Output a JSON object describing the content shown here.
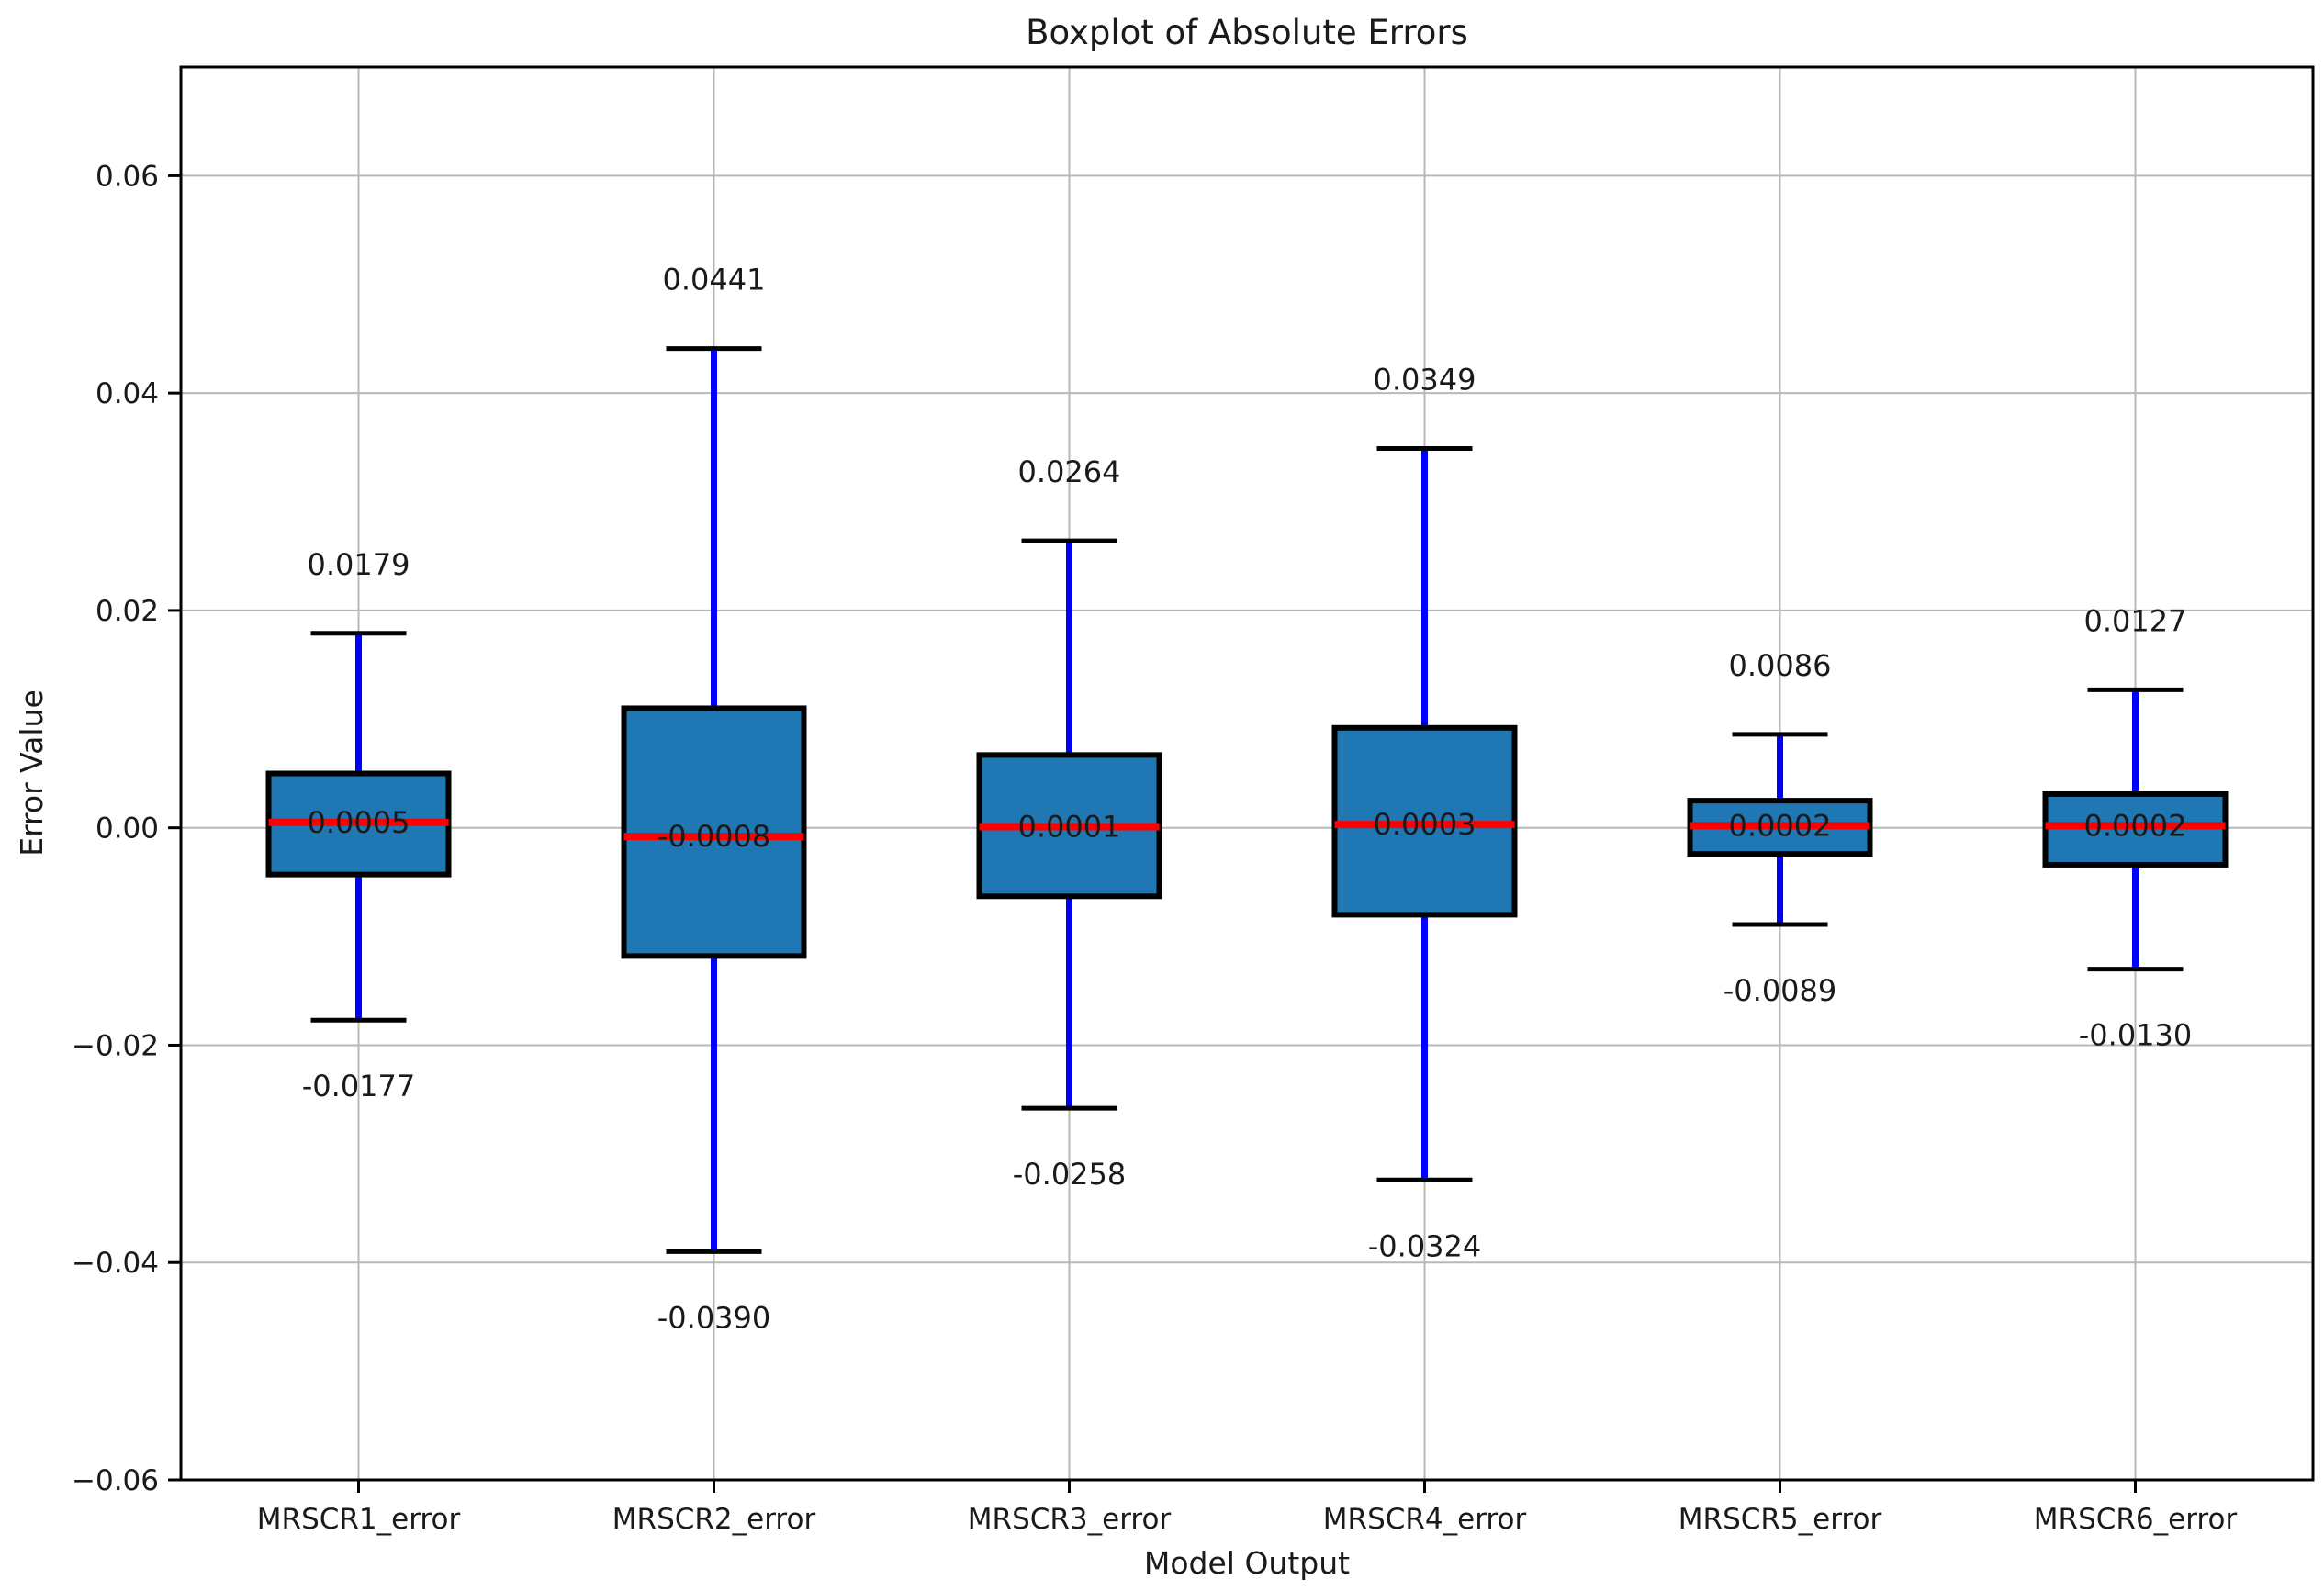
{
  "chart": {
    "title": "Boxplot of Absolute Errors",
    "xlabel": "Model Output",
    "ylabel": "Error Value"
  },
  "chart_data": {
    "type": "boxplot",
    "title": "Boxplot of Absolute Errors",
    "xlabel": "Model Output",
    "ylabel": "Error Value",
    "ylim": [
      -0.06,
      0.07
    ],
    "grid": true,
    "legend": "none",
    "yticks": [
      {
        "value": 0.06,
        "label": "0.06"
      },
      {
        "value": 0.04,
        "label": "0.04"
      },
      {
        "value": 0.02,
        "label": "0.02"
      },
      {
        "value": 0.0,
        "label": "0.00"
      },
      {
        "value": -0.02,
        "label": "−0.02"
      },
      {
        "value": -0.04,
        "label": "−0.04"
      },
      {
        "value": -0.06,
        "label": "−0.06"
      }
    ],
    "categories": [
      "MRSCR1_error",
      "MRSCR2_error",
      "MRSCR3_error",
      "MRSCR4_error",
      "MRSCR5_error",
      "MRSCR6_error"
    ],
    "boxes": [
      {
        "category": "MRSCR1_error",
        "whisker_high": 0.0179,
        "q3": 0.005,
        "median": 0.0005,
        "q1": -0.0043,
        "whisker_low": -0.0177,
        "labels": {
          "whisker_high": "0.0179",
          "median": "0.0005",
          "whisker_low": "-0.0177"
        }
      },
      {
        "category": "MRSCR2_error",
        "whisker_high": 0.0441,
        "q3": 0.011,
        "median": -0.0008,
        "q1": -0.0118,
        "whisker_low": -0.039,
        "labels": {
          "whisker_high": "0.0441",
          "median": "-0.0008",
          "whisker_low": "-0.0390"
        }
      },
      {
        "category": "MRSCR3_error",
        "whisker_high": 0.0264,
        "q3": 0.0067,
        "median": 0.0001,
        "q1": -0.0063,
        "whisker_low": -0.0258,
        "labels": {
          "whisker_high": "0.0264",
          "median": "0.0001",
          "whisker_low": "-0.0258"
        }
      },
      {
        "category": "MRSCR4_error",
        "whisker_high": 0.0349,
        "q3": 0.0092,
        "median": 0.0003,
        "q1": -0.008,
        "whisker_low": -0.0324,
        "labels": {
          "whisker_high": "0.0349",
          "median": "0.0003",
          "whisker_low": "-0.0324"
        }
      },
      {
        "category": "MRSCR5_error",
        "whisker_high": 0.0086,
        "q3": 0.0025,
        "median": 0.0002,
        "q1": -0.0024,
        "whisker_low": -0.0089,
        "labels": {
          "whisker_high": "0.0086",
          "median": "0.0002",
          "whisker_low": "-0.0089"
        }
      },
      {
        "category": "MRSCR6_error",
        "whisker_high": 0.0127,
        "q3": 0.0031,
        "median": 0.0002,
        "q1": -0.0034,
        "whisker_low": -0.013,
        "labels": {
          "whisker_high": "0.0127",
          "median": "0.0002",
          "whisker_low": "-0.0130"
        }
      }
    ],
    "colors": {
      "box_fill": "#1f77b4",
      "box_edge": "#000000",
      "median_line": "#ff0000",
      "whisker": "#0000ff",
      "cap": "#000000",
      "grid": "#b8b8b8",
      "frame": "#000000",
      "text": "#1a1a1a"
    }
  }
}
